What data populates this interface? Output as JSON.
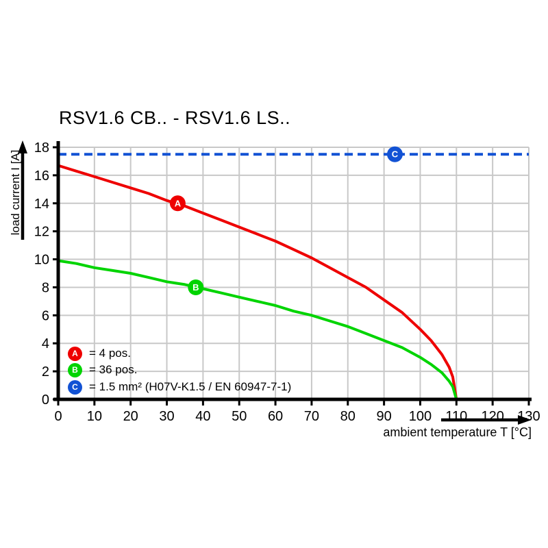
{
  "chart_data": {
    "type": "line",
    "title": "RSV1.6 CB.. - RSV1.6 LS..",
    "xlabel": "ambient temperature T [°C]",
    "ylabel": "load current I [A]",
    "xlim": [
      0,
      130
    ],
    "ylim": [
      0,
      18
    ],
    "xticks": [
      0,
      10,
      20,
      30,
      40,
      50,
      60,
      70,
      80,
      90,
      100,
      110,
      120,
      130
    ],
    "yticks": [
      0,
      2,
      4,
      6,
      8,
      10,
      12,
      14,
      16,
      18
    ],
    "grid": true,
    "grid_color": "#c8c8c8",
    "axis_color": "#000000",
    "legend_position": "inside bottom-left",
    "series": [
      {
        "name": "A",
        "legend_label": "= 4 pos.",
        "color": "#ee0000",
        "line_style": "solid",
        "marker": {
          "letter": "A",
          "T": 33,
          "I": 14
        },
        "points": [
          [
            0,
            16.7
          ],
          [
            5,
            16.3
          ],
          [
            10,
            15.9
          ],
          [
            15,
            15.5
          ],
          [
            20,
            15.1
          ],
          [
            25,
            14.7
          ],
          [
            30,
            14.2
          ],
          [
            35,
            13.8
          ],
          [
            40,
            13.3
          ],
          [
            45,
            12.8
          ],
          [
            50,
            12.3
          ],
          [
            55,
            11.8
          ],
          [
            60,
            11.3
          ],
          [
            65,
            10.7
          ],
          [
            70,
            10.1
          ],
          [
            75,
            9.4
          ],
          [
            80,
            8.7
          ],
          [
            85,
            8.0
          ],
          [
            90,
            7.1
          ],
          [
            95,
            6.2
          ],
          [
            100,
            5.0
          ],
          [
            103,
            4.2
          ],
          [
            106,
            3.2
          ],
          [
            108,
            2.3
          ],
          [
            109,
            1.6
          ],
          [
            110,
            0
          ]
        ]
      },
      {
        "name": "B",
        "legend_label": "= 36 pos.",
        "color": "#00d400",
        "line_style": "solid",
        "marker": {
          "letter": "B",
          "T": 38,
          "I": 8
        },
        "points": [
          [
            0,
            9.9
          ],
          [
            5,
            9.7
          ],
          [
            10,
            9.4
          ],
          [
            15,
            9.2
          ],
          [
            20,
            9.0
          ],
          [
            25,
            8.7
          ],
          [
            30,
            8.4
          ],
          [
            35,
            8.2
          ],
          [
            40,
            7.9
          ],
          [
            45,
            7.6
          ],
          [
            50,
            7.3
          ],
          [
            55,
            7.0
          ],
          [
            60,
            6.7
          ],
          [
            65,
            6.3
          ],
          [
            70,
            6.0
          ],
          [
            75,
            5.6
          ],
          [
            80,
            5.2
          ],
          [
            85,
            4.7
          ],
          [
            90,
            4.2
          ],
          [
            95,
            3.7
          ],
          [
            100,
            3.0
          ],
          [
            103,
            2.5
          ],
          [
            106,
            1.9
          ],
          [
            108,
            1.3
          ],
          [
            109,
            0.9
          ],
          [
            110,
            0
          ]
        ]
      },
      {
        "name": "C",
        "legend_label": "= 1.5 mm² (H07V-K1.5 / EN 60947-7-1)",
        "color": "#1252d4",
        "line_style": "dashed",
        "marker": {
          "letter": "C",
          "T": 93,
          "I": 17.5
        },
        "points": [
          [
            0,
            17.5
          ],
          [
            130,
            17.5
          ]
        ]
      }
    ]
  }
}
